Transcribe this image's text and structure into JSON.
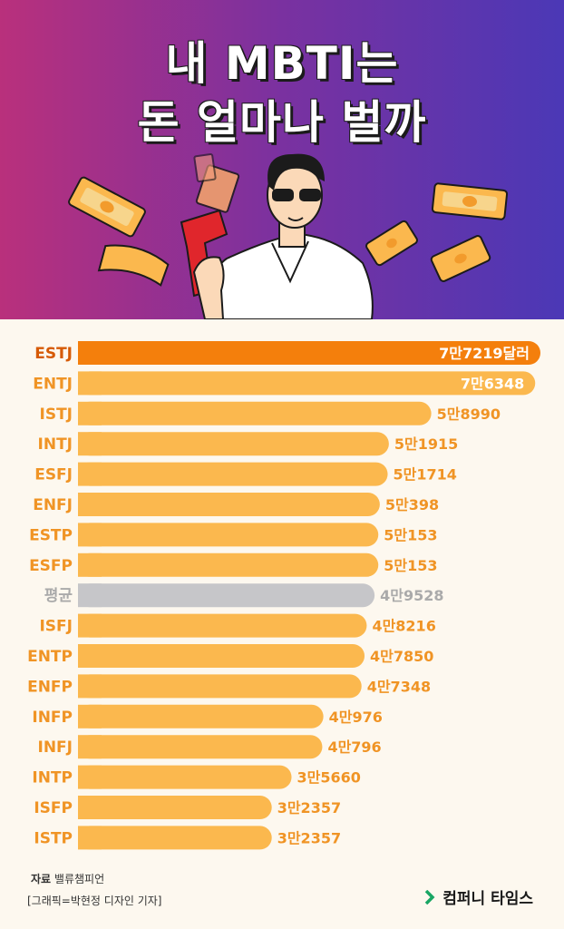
{
  "title": {
    "line1": "내 MBTI는",
    "line2": "돈 얼마나 벌까"
  },
  "colors": {
    "highlight": "#f47f0c",
    "bar": "#fbb84e",
    "average": "#c6c6c9",
    "label": "#f09425",
    "label_highlight": "#d65a06",
    "label_average": "#aaaaaa"
  },
  "chart_data": {
    "type": "bar",
    "orientation": "horizontal",
    "categories": [
      "ESTJ",
      "ENTJ",
      "ISTJ",
      "INTJ",
      "ESFJ",
      "ENFJ",
      "ESTP",
      "ESFP",
      "평균",
      "ISFJ",
      "ENTP",
      "ENFP",
      "INFP",
      "INFJ",
      "INTP",
      "ISFP",
      "ISTP"
    ],
    "values": [
      77219,
      76348,
      58990,
      51915,
      51714,
      50398,
      50153,
      50153,
      49528,
      48216,
      47850,
      47348,
      40976,
      40796,
      35660,
      32357,
      32357
    ],
    "value_labels": [
      "7만7219달러",
      "7만6348",
      "5만8990",
      "5만1915",
      "5만1714",
      "5만398",
      "5만153",
      "5만153",
      "4만9528",
      "4만8216",
      "4만7850",
      "4만7348",
      "4만976",
      "4만796",
      "3만5660",
      "3만2357",
      "3만2357"
    ],
    "highlight": "ESTJ",
    "average": "평균"
  },
  "footer": {
    "source_label": "자료",
    "source": "밸류챔피언",
    "credit": "[그래픽=박현정 디자인 기자]",
    "logo": "컴퍼니 타임스"
  }
}
